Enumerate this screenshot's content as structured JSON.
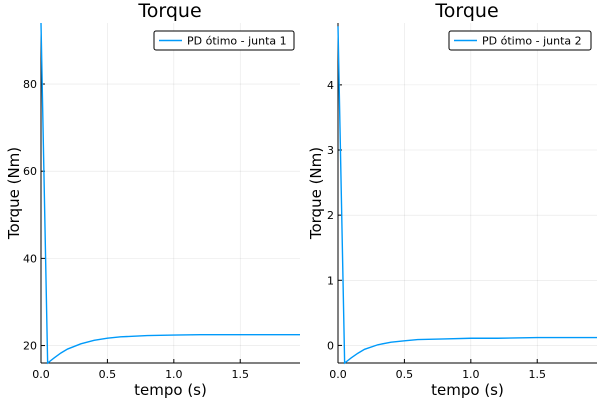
{
  "chart_data": [
    {
      "type": "line",
      "title": "Torque",
      "xlabel": "tempo (s)",
      "ylabel": "Torque (Nm)",
      "xlim": [
        0,
        1.95
      ],
      "ylim": [
        16,
        94
      ],
      "xticks": [
        0.0,
        0.5,
        1.0,
        1.5
      ],
      "xtick_labels": [
        "0.0",
        "0.5",
        "1.0",
        "1.5"
      ],
      "yticks": [
        20,
        40,
        60,
        80
      ],
      "ytick_labels": [
        "20",
        "40",
        "60",
        "80"
      ],
      "grid": true,
      "legend_position": "top-right",
      "series": [
        {
          "name": "PD ótimo - junta 1",
          "color": "#009AFA",
          "x": [
            0.0,
            0.05,
            0.1,
            0.15,
            0.2,
            0.3,
            0.4,
            0.5,
            0.6,
            0.8,
            1.0,
            1.2,
            1.5,
            1.8,
            1.95
          ],
          "y": [
            94,
            16,
            17.2,
            18.3,
            19.2,
            20.4,
            21.2,
            21.7,
            22.0,
            22.3,
            22.4,
            22.5,
            22.5,
            22.5,
            22.5
          ]
        }
      ]
    },
    {
      "type": "line",
      "title": "Torque",
      "xlabel": "tempo (s)",
      "ylabel": "Torque (Nm)",
      "xlim": [
        0,
        1.95
      ],
      "ylim": [
        -0.27,
        4.95
      ],
      "xticks": [
        0.0,
        0.5,
        1.0,
        1.5
      ],
      "xtick_labels": [
        "0.0",
        "0.5",
        "1.0",
        "1.5"
      ],
      "yticks": [
        0,
        1,
        2,
        3,
        4
      ],
      "ytick_labels": [
        "0",
        "1",
        "2",
        "3",
        "4"
      ],
      "grid": true,
      "legend_position": "top-right",
      "series": [
        {
          "name": "PD ótimo - junta 2",
          "color": "#009AFA",
          "x": [
            0.0,
            0.05,
            0.1,
            0.15,
            0.2,
            0.3,
            0.4,
            0.5,
            0.6,
            0.8,
            1.0,
            1.2,
            1.5,
            1.8,
            1.95
          ],
          "y": [
            4.9,
            -0.27,
            -0.19,
            -0.12,
            -0.06,
            0.01,
            0.05,
            0.07,
            0.09,
            0.1,
            0.11,
            0.11,
            0.12,
            0.12,
            0.12
          ]
        }
      ]
    }
  ]
}
